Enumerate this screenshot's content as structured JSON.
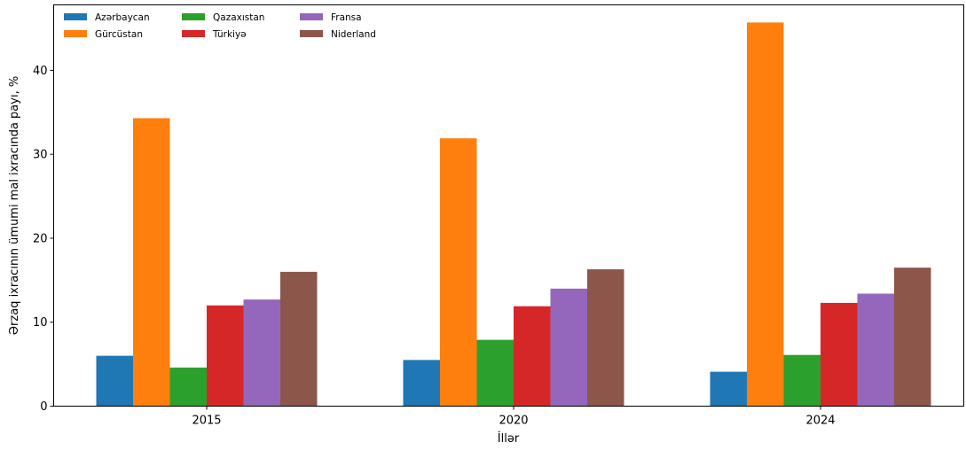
{
  "chart_data": {
    "type": "bar",
    "xlabel": "İllər",
    "ylabel": "Ərzaq ixracının ümumi mal ixracında payı, %",
    "categories": [
      "2015",
      "2020",
      "2024"
    ],
    "ylim": [
      0,
      47.8
    ],
    "yticks": [
      "0",
      "10",
      "20",
      "30",
      "40"
    ],
    "legend_position": "top-left",
    "grid": false,
    "series": [
      {
        "name": "Azərbaycan",
        "color": "#1f77b4",
        "values": [
          6.0,
          5.5,
          4.1
        ]
      },
      {
        "name": "Gürcüstan",
        "color": "#ff7f0e",
        "values": [
          34.3,
          31.9,
          45.7
        ]
      },
      {
        "name": "Qazaxıstan",
        "color": "#2ca02c",
        "values": [
          4.6,
          7.9,
          6.1
        ]
      },
      {
        "name": "Türkiyə",
        "color": "#d62728",
        "values": [
          12.0,
          11.9,
          12.3
        ]
      },
      {
        "name": "Fransa",
        "color": "#9467bd",
        "values": [
          12.7,
          14.0,
          13.4
        ]
      },
      {
        "name": "Niderland",
        "color": "#8c564b",
        "values": [
          16.0,
          16.3,
          16.5
        ]
      }
    ]
  }
}
